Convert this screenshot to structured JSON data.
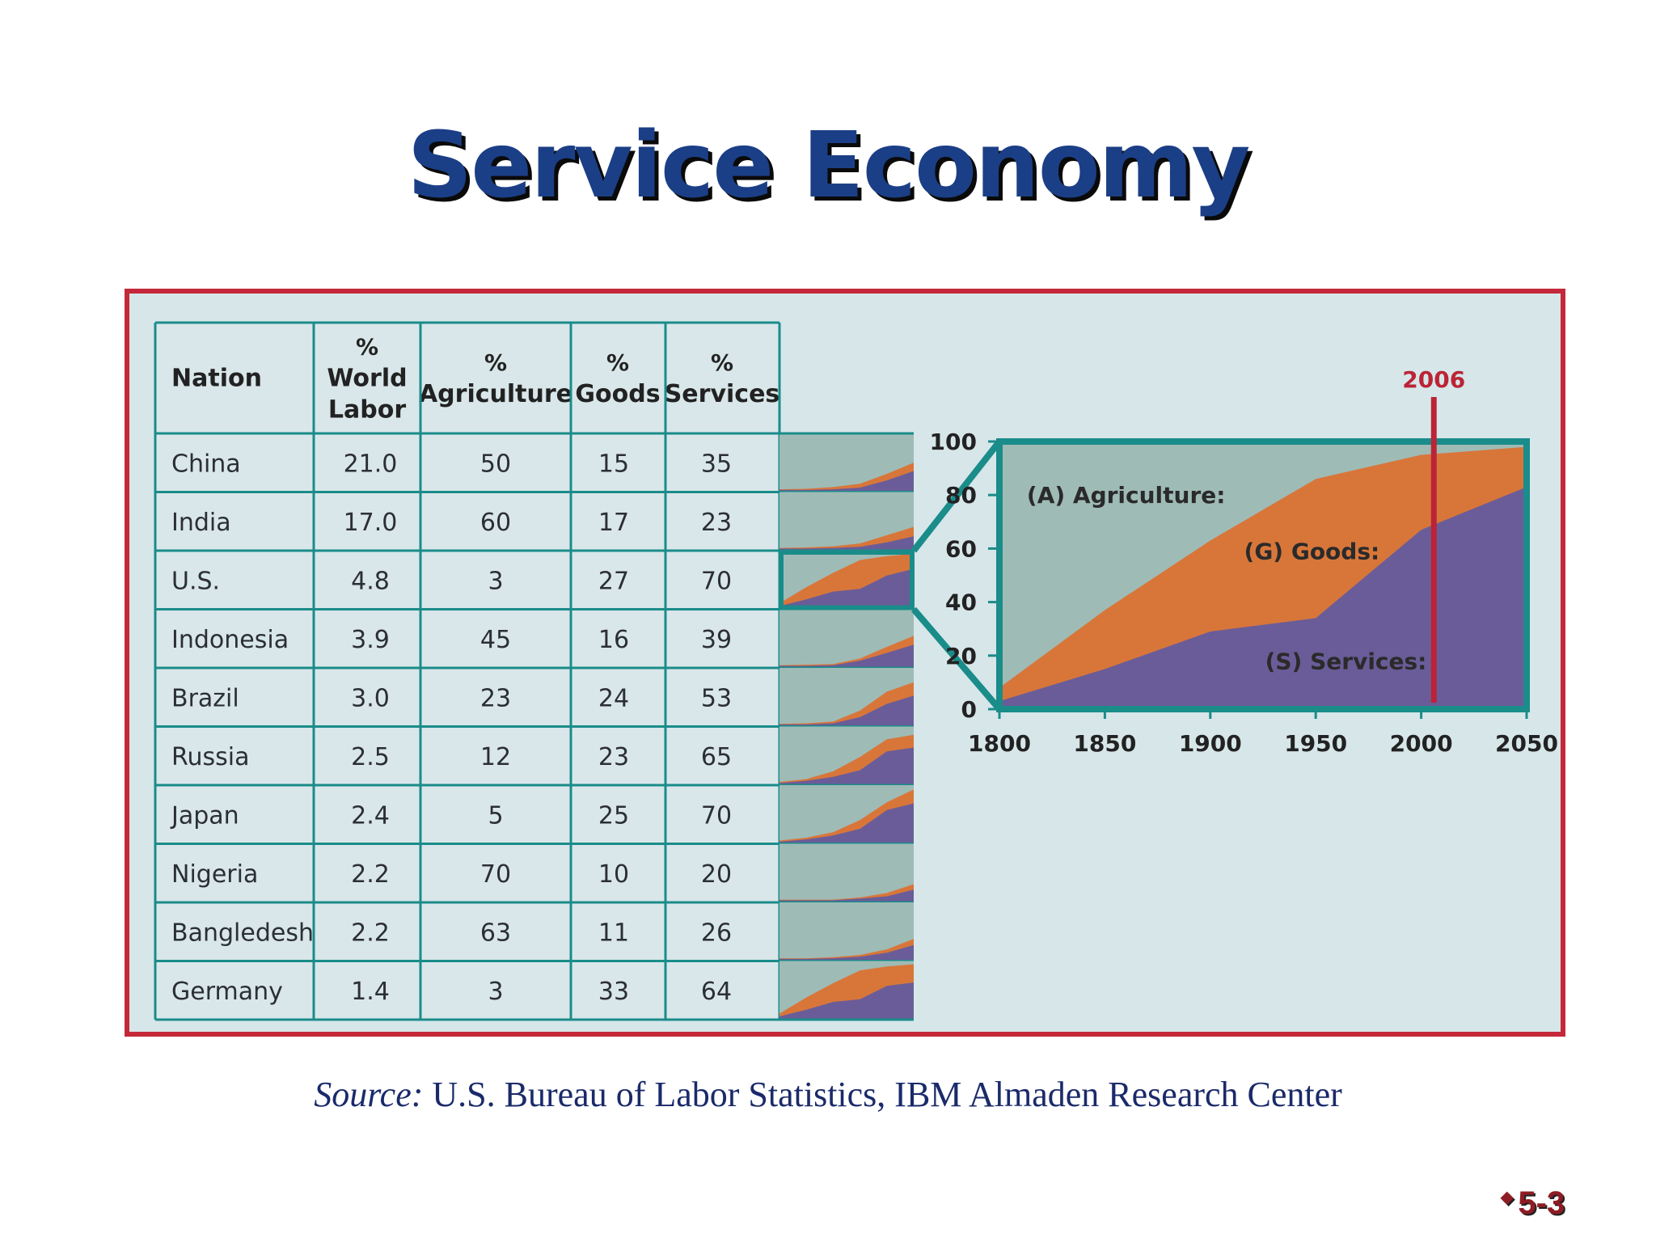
{
  "slide": {
    "title": "Service Economy",
    "source_label": "Source:",
    "source_text": " U.S. Bureau of Labor Statistics, IBM Almaden Research Center",
    "page_number": "5-3",
    "bullet": "◆"
  },
  "colors": {
    "agriculture": "#9fbbb6",
    "goods": "#d8763a",
    "services": "#6a5c98",
    "frame": "#c4283a",
    "grid": "#1a8c8a",
    "highlight": "#bb2436"
  },
  "chart_data": [
    {
      "type": "table",
      "columns": [
        [
          "Nation"
        ],
        [
          "%",
          "World",
          "Labor"
        ],
        [
          "%",
          "Agriculture"
        ],
        [
          "%",
          "Goods"
        ],
        [
          "%",
          "Services"
        ]
      ],
      "rows": [
        {
          "nation": "China",
          "world_labor": "21.0",
          "agriculture": "50",
          "goods": "15",
          "services": "35"
        },
        {
          "nation": "India",
          "world_labor": "17.0",
          "agriculture": "60",
          "goods": "17",
          "services": "23"
        },
        {
          "nation": "U.S.",
          "world_labor": "4.8",
          "agriculture": "3",
          "goods": "27",
          "services": "70"
        },
        {
          "nation": "Indonesia",
          "world_labor": "3.9",
          "agriculture": "45",
          "goods": "16",
          "services": "39"
        },
        {
          "nation": "Brazil",
          "world_labor": "3.0",
          "agriculture": "23",
          "goods": "24",
          "services": "53"
        },
        {
          "nation": "Russia",
          "world_labor": "2.5",
          "agriculture": "12",
          "goods": "23",
          "services": "65"
        },
        {
          "nation": "Japan",
          "world_labor": "2.4",
          "agriculture": "5",
          "goods": "25",
          "services": "70"
        },
        {
          "nation": "Nigeria",
          "world_labor": "2.2",
          "agriculture": "70",
          "goods": "10",
          "services": "20"
        },
        {
          "nation": "Bangledesh",
          "world_labor": "2.2",
          "agriculture": "63",
          "goods": "11",
          "services": "26"
        },
        {
          "nation": "Germany",
          "world_labor": "1.4",
          "agriculture": "3",
          "goods": "33",
          "services": "64"
        }
      ],
      "highlighted_row": "U.S."
    },
    {
      "type": "area",
      "stacked": true,
      "x": [
        1800,
        1850,
        1900,
        1950,
        2000,
        2050
      ],
      "xlim": [
        1800,
        2050
      ],
      "ylim": [
        0,
        100
      ],
      "x_ticks": [
        "1800",
        "1850",
        "1900",
        "1950",
        "2000",
        "2050"
      ],
      "y_ticks": [
        "0",
        "20",
        "40",
        "60",
        "80",
        "100"
      ],
      "series": [
        {
          "name": "(S) Services:",
          "values": [
            3,
            15,
            29,
            34,
            67,
            83
          ]
        },
        {
          "name": "(G) Goods:",
          "values": [
            5,
            22,
            34,
            52,
            28,
            15
          ]
        },
        {
          "name": "(A) Agriculture:",
          "values": [
            92,
            63,
            37,
            14,
            5,
            2
          ]
        }
      ],
      "marker": {
        "x": 2006,
        "label": "2006"
      },
      "grid": false
    },
    {
      "type": "area",
      "stacked": true,
      "note": "per-country sparklines; services and services+goods cumulative percent",
      "x": [
        0,
        0.2,
        0.4,
        0.6,
        0.8,
        1.0
      ],
      "rows": [
        {
          "nation": "China",
          "services": [
            1,
            1,
            2,
            5,
            18,
            35
          ],
          "services_goods": [
            2,
            3,
            6,
            12,
            30,
            50
          ]
        },
        {
          "nation": "India",
          "services": [
            1,
            1,
            2,
            4,
            12,
            23
          ],
          "services_goods": [
            2,
            3,
            5,
            10,
            25,
            40
          ]
        },
        {
          "nation": "U.S.",
          "services": [
            3,
            15,
            29,
            34,
            58,
            70
          ],
          "services_goods": [
            8,
            37,
            63,
            86,
            93,
            97
          ]
        },
        {
          "nation": "Indonesia",
          "services": [
            1,
            1,
            2,
            10,
            24,
            39
          ],
          "services_goods": [
            2,
            3,
            4,
            14,
            35,
            55
          ]
        },
        {
          "nation": "Brazil",
          "services": [
            1,
            1,
            3,
            14,
            38,
            53
          ],
          "services_goods": [
            2,
            3,
            6,
            26,
            60,
            77
          ]
        },
        {
          "nation": "Russia",
          "services": [
            1,
            5,
            12,
            24,
            58,
            65
          ],
          "services_goods": [
            3,
            8,
            22,
            48,
            80,
            88
          ]
        },
        {
          "nation": "Japan",
          "services": [
            1,
            5,
            12,
            24,
            58,
            70
          ],
          "services_goods": [
            3,
            8,
            18,
            40,
            72,
            95
          ]
        },
        {
          "nation": "Nigeria",
          "services": [
            1,
            1,
            1,
            4,
            8,
            20
          ],
          "services_goods": [
            2,
            2,
            2,
            6,
            14,
            30
          ]
        },
        {
          "nation": "Bangledesh",
          "services": [
            1,
            1,
            2,
            5,
            12,
            26
          ],
          "services_goods": [
            2,
            2,
            4,
            8,
            18,
            37
          ]
        },
        {
          "nation": "Germany",
          "services": [
            3,
            15,
            29,
            34,
            58,
            64
          ],
          "services_goods": [
            8,
            37,
            63,
            86,
            93,
            97
          ]
        }
      ]
    }
  ]
}
